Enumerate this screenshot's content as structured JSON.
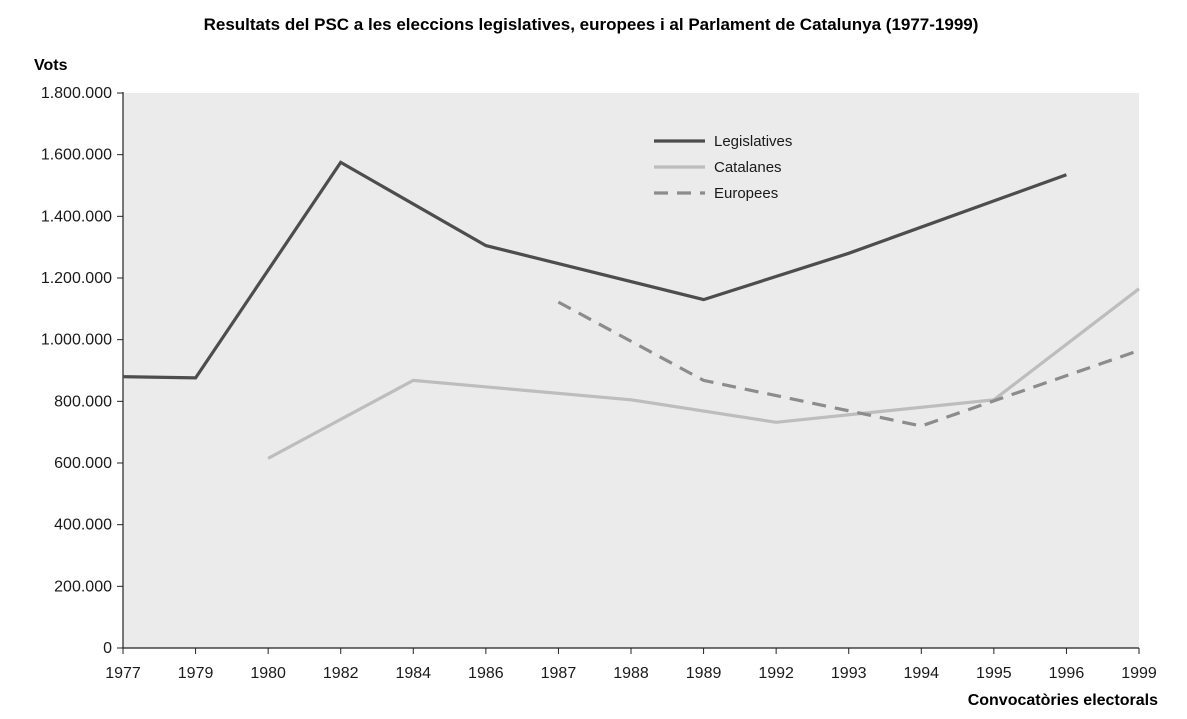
{
  "chart_data": {
    "type": "line",
    "title": "Resultats del PSC a les eleccions legislatives, europees i al Parlament de Catalunya (1977-1999)",
    "ylabel": "Vots",
    "xlabel": "Convocatòries electorals",
    "categories": [
      "1977",
      "1979",
      "1980",
      "1982",
      "1984",
      "1986",
      "1987",
      "1988",
      "1989",
      "1992",
      "1993",
      "1994",
      "1995",
      "1996",
      "1999"
    ],
    "yticks": [
      "0",
      "200.000",
      "400.000",
      "600.000",
      "800.000",
      "1.000.000",
      "1.200.000",
      "1.400.000",
      "1.600.000",
      "1.800.000"
    ],
    "ylim": [
      0,
      1800000
    ],
    "grid": false,
    "legend_position": "top-center",
    "series": [
      {
        "name": "Legislatives",
        "color": "#4d4d4d",
        "style": "solid",
        "points": [
          {
            "x": "1977",
            "y": 880000
          },
          {
            "x": "1979",
            "y": 876000
          },
          {
            "x": "1982",
            "y": 1575000
          },
          {
            "x": "1986",
            "y": 1305000
          },
          {
            "x": "1989",
            "y": 1130000
          },
          {
            "x": "1993",
            "y": 1280000
          },
          {
            "x": "1996",
            "y": 1535000
          }
        ]
      },
      {
        "name": "Catalanes",
        "color": "#bdbdbd",
        "style": "solid",
        "points": [
          {
            "x": "1980",
            "y": 615000
          },
          {
            "x": "1984",
            "y": 868000
          },
          {
            "x": "1988",
            "y": 805000
          },
          {
            "x": "1992",
            "y": 732000
          },
          {
            "x": "1995",
            "y": 805000
          },
          {
            "x": "1999",
            "y": 1165000
          }
        ]
      },
      {
        "name": "Europees",
        "color": "#8c8c8c",
        "style": "dashed",
        "points": [
          {
            "x": "1987",
            "y": 1122000
          },
          {
            "x": "1989",
            "y": 868000
          },
          {
            "x": "1994",
            "y": 720000
          },
          {
            "x": "1999",
            "y": 965000
          }
        ]
      }
    ]
  }
}
